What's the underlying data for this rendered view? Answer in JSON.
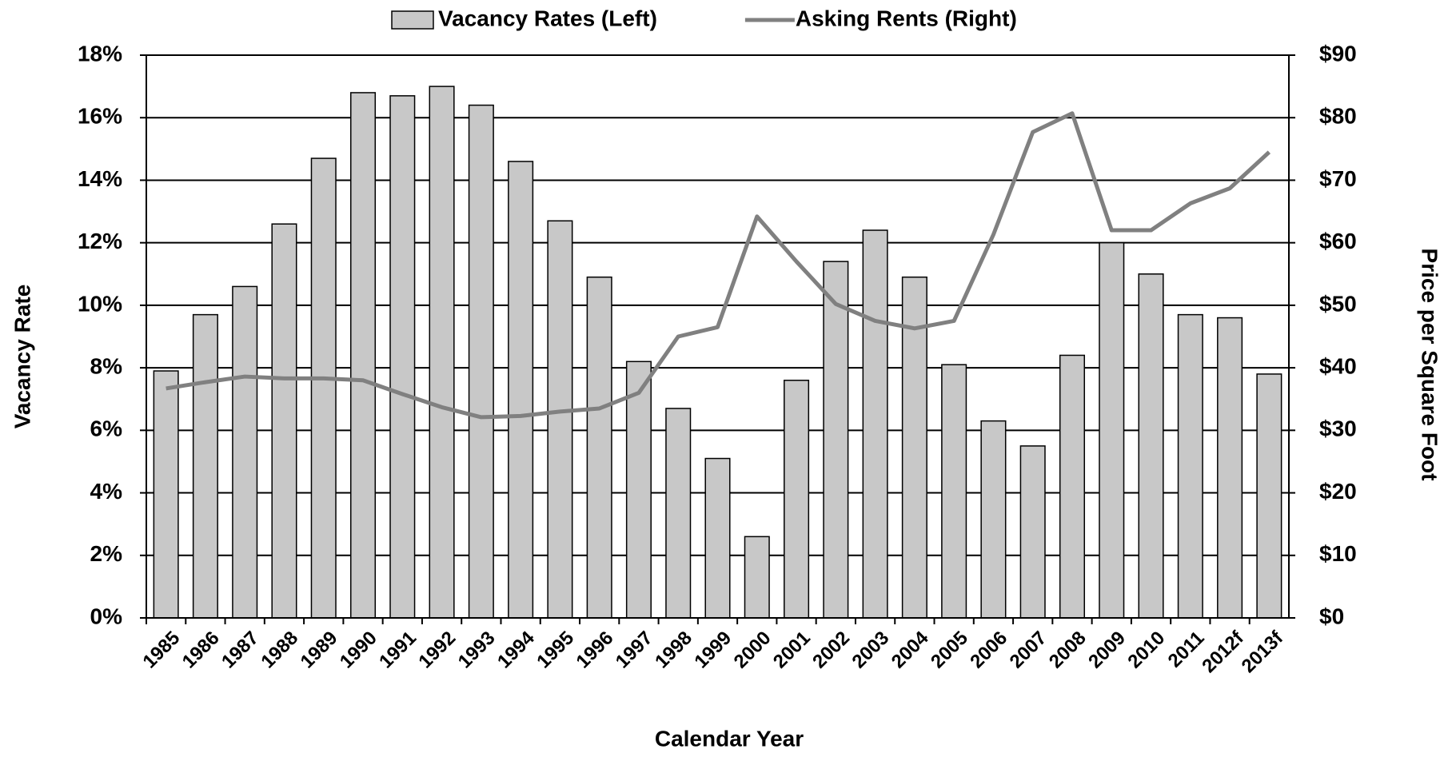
{
  "chart_data": {
    "type": "bar_line",
    "x_label": "Calendar Year",
    "y_label": "Vacancy Rate",
    "y2_label": "Price per Square Foot",
    "categories": [
      "1985",
      "1986",
      "1987",
      "1988",
      "1989",
      "1990",
      "1991",
      "1992",
      "1993",
      "1994",
      "1995",
      "1996",
      "1997",
      "1998",
      "1999",
      "2000",
      "2001",
      "2002",
      "2003",
      "2004",
      "2005",
      "2006",
      "2007",
      "2008",
      "2009",
      "2010",
      "2011",
      "2012f",
      "2013f"
    ],
    "series": [
      {
        "name": "Vacancy Rates (Left)",
        "type": "bar",
        "color": "#c8c8c8",
        "axis": "y",
        "values": [
          7.9,
          9.7,
          10.6,
          12.6,
          14.7,
          16.8,
          16.7,
          17.0,
          16.4,
          14.6,
          12.7,
          10.9,
          8.2,
          6.7,
          5.1,
          2.6,
          7.6,
          11.4,
          12.4,
          10.9,
          8.1,
          6.3,
          5.5,
          8.4,
          12.0,
          11.0,
          9.7,
          9.6,
          7.8
        ]
      },
      {
        "name": "Asking Rents (Right)",
        "type": "line",
        "color": "#808080",
        "axis": "y2",
        "values": [
          36.7,
          37.7,
          38.6,
          38.3,
          38.3,
          38.0,
          35.8,
          33.7,
          32.1,
          32.3,
          33.0,
          33.5,
          36.0,
          45.0,
          46.5,
          64.2,
          57.0,
          50.2,
          47.5,
          46.3,
          47.5,
          61.3,
          77.7,
          80.7,
          62.0,
          62.0,
          66.3,
          68.7,
          74.5
        ]
      }
    ],
    "ylim": [
      0,
      18
    ],
    "yticks": [
      {
        "value": 0,
        "label": "0%"
      },
      {
        "value": 2,
        "label": "2%"
      },
      {
        "value": 4,
        "label": "4%"
      },
      {
        "value": 6,
        "label": "6%"
      },
      {
        "value": 8,
        "label": "8%"
      },
      {
        "value": 10,
        "label": "10%"
      },
      {
        "value": 12,
        "label": "12%"
      },
      {
        "value": 14,
        "label": "14%"
      },
      {
        "value": 16,
        "label": "16%"
      },
      {
        "value": 18,
        "label": "18%"
      }
    ],
    "y2lim": [
      0,
      90
    ],
    "y2ticks": [
      {
        "value": 0,
        "label": "$0"
      },
      {
        "value": 10,
        "label": "$10"
      },
      {
        "value": 20,
        "label": "$20"
      },
      {
        "value": 30,
        "label": "$30"
      },
      {
        "value": 40,
        "label": "$40"
      },
      {
        "value": 50,
        "label": "$50"
      },
      {
        "value": 60,
        "label": "$60"
      },
      {
        "value": 70,
        "label": "$70"
      },
      {
        "value": 80,
        "label": "$80"
      },
      {
        "value": 90,
        "label": "$90"
      }
    ],
    "grid": true,
    "legend": "top"
  }
}
